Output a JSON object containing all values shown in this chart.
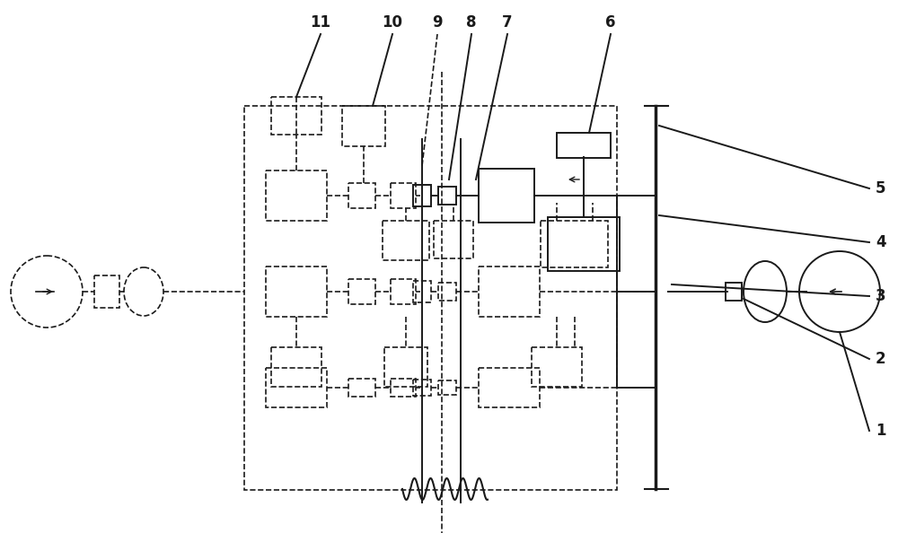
{
  "bg_color": "#ffffff",
  "lc": "#1a1a1a",
  "fig_width": 10.0,
  "fig_height": 5.94,
  "dpi": 100
}
